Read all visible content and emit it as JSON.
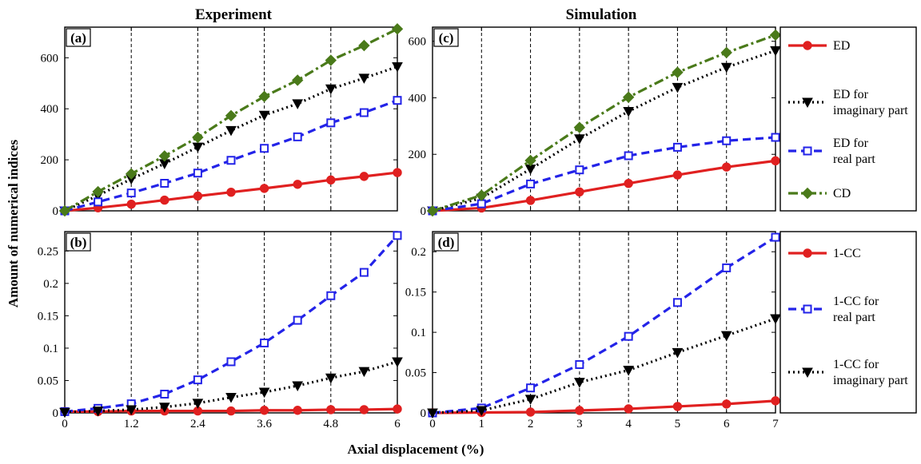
{
  "titles": {
    "left": "Experiment",
    "right": "Simulation"
  },
  "ylabel": "Amount of numerical indices",
  "xlabel": "Axial displacement (%)",
  "chart_data": [
    {
      "panel": "(a)",
      "type": "line",
      "xlim": [
        0,
        6
      ],
      "ylim": [
        0,
        720
      ],
      "xticks": [
        "0",
        "1.2",
        "2.4",
        "3.6",
        "4.8",
        "6"
      ],
      "yticks": [
        "0",
        "200",
        "400",
        "600"
      ],
      "x": [
        0,
        0.6,
        1.2,
        1.8,
        2.4,
        3.0,
        3.6,
        4.2,
        4.8,
        5.4,
        6.0
      ],
      "series": [
        {
          "key": "ed",
          "values": [
            0,
            12,
            26,
            42,
            58,
            73,
            88,
            104,
            121,
            135,
            150
          ]
        },
        {
          "key": "ed_imag",
          "values": [
            0,
            60,
            125,
            185,
            250,
            315,
            375,
            420,
            478,
            520,
            565
          ]
        },
        {
          "key": "ed_real",
          "values": [
            0,
            35,
            70,
            108,
            148,
            198,
            245,
            290,
            345,
            385,
            433
          ]
        },
        {
          "key": "cd",
          "values": [
            0,
            75,
            145,
            215,
            288,
            373,
            448,
            512,
            590,
            648,
            713
          ]
        }
      ]
    },
    {
      "panel": "(b)",
      "type": "line",
      "xlim": [
        0,
        6
      ],
      "ylim": [
        0,
        0.28
      ],
      "xticks": [
        "0",
        "1.2",
        "2.4",
        "3.6",
        "4.8",
        "6"
      ],
      "yticks": [
        "0",
        "0.05",
        "0.1",
        "0.15",
        "0.2",
        "0.25"
      ],
      "x": [
        0,
        0.6,
        1.2,
        1.8,
        2.4,
        3.0,
        3.6,
        4.2,
        4.8,
        5.4,
        6.0
      ],
      "series": [
        {
          "key": "cc",
          "values": [
            0.002,
            0.002,
            0.003,
            0.003,
            0.003,
            0.003,
            0.004,
            0.004,
            0.005,
            0.005,
            0.006
          ]
        },
        {
          "key": "cc_real",
          "values": [
            0.002,
            0.007,
            0.014,
            0.029,
            0.051,
            0.079,
            0.108,
            0.143,
            0.181,
            0.217,
            0.274
          ]
        },
        {
          "key": "cc_imag",
          "values": [
            0.001,
            0.003,
            0.005,
            0.009,
            0.015,
            0.024,
            0.032,
            0.042,
            0.054,
            0.064,
            0.079
          ]
        }
      ]
    },
    {
      "panel": "(c)",
      "type": "line",
      "xlim": [
        0,
        7
      ],
      "ylim": [
        0,
        650
      ],
      "xticks": [
        "0",
        "1",
        "2",
        "3",
        "4",
        "5",
        "6",
        "7"
      ],
      "yticks": [
        "0",
        "200",
        "400",
        "600"
      ],
      "x": [
        0,
        1,
        2,
        3,
        4,
        5,
        6,
        7
      ],
      "series": [
        {
          "key": "ed",
          "values": [
            0,
            10,
            37,
            67,
            97,
            127,
            155,
            177
          ]
        },
        {
          "key": "ed_imag",
          "values": [
            0,
            45,
            148,
            255,
            352,
            437,
            508,
            567
          ]
        },
        {
          "key": "ed_real",
          "values": [
            0,
            25,
            95,
            145,
            195,
            225,
            248,
            260
          ]
        },
        {
          "key": "cd",
          "values": [
            0,
            55,
            178,
            295,
            402,
            490,
            560,
            622
          ]
        }
      ]
    },
    {
      "panel": "(d)",
      "type": "line",
      "xlim": [
        0,
        7
      ],
      "ylim": [
        0,
        0.225
      ],
      "xticks": [
        "0",
        "1",
        "2",
        "3",
        "4",
        "5",
        "6",
        "7"
      ],
      "yticks": [
        "0",
        "0.05",
        "0.1",
        "0.15",
        "0.2"
      ],
      "x": [
        0,
        1,
        2,
        3,
        4,
        5,
        6,
        7
      ],
      "series": [
        {
          "key": "cc",
          "values": [
            0,
            0.0005,
            0.001,
            0.003,
            0.005,
            0.008,
            0.011,
            0.015
          ]
        },
        {
          "key": "cc_real",
          "values": [
            0,
            0.006,
            0.031,
            0.06,
            0.095,
            0.137,
            0.18,
            0.218
          ]
        },
        {
          "key": "cc_imag",
          "values": [
            0,
            0.003,
            0.017,
            0.038,
            0.053,
            0.075,
            0.096,
            0.117
          ]
        }
      ]
    }
  ],
  "styles": {
    "ed": {
      "color": "#e02020",
      "marker": "circle",
      "dash": ""
    },
    "ed_imag": {
      "color": "#000000",
      "marker": "triangle",
      "dash": "2,4"
    },
    "ed_real": {
      "color": "#2323e8",
      "marker": "square",
      "dash": "10,6"
    },
    "cd": {
      "color": "#4a7a1a",
      "marker": "diamond",
      "dash": "12,4,3,4"
    },
    "cc": {
      "color": "#e02020",
      "marker": "circle",
      "dash": ""
    },
    "cc_real": {
      "color": "#2323e8",
      "marker": "square",
      "dash": "10,6"
    },
    "cc_imag": {
      "color": "#000000",
      "marker": "triangle",
      "dash": "2,4"
    }
  },
  "legend_top": [
    {
      "key": "ed",
      "lines": [
        "ED"
      ]
    },
    {
      "key": "ed_imag",
      "lines": [
        "ED for",
        "imaginary part"
      ]
    },
    {
      "key": "ed_real",
      "lines": [
        "ED for",
        "real part"
      ]
    },
    {
      "key": "cd",
      "lines": [
        "CD"
      ]
    }
  ],
  "legend_bottom": [
    {
      "key": "cc",
      "lines": [
        "1-CC"
      ]
    },
    {
      "key": "cc_real",
      "lines": [
        "1-CC for",
        "real part"
      ]
    },
    {
      "key": "cc_imag",
      "lines": [
        "1-CC for",
        "imaginary part"
      ]
    }
  ]
}
